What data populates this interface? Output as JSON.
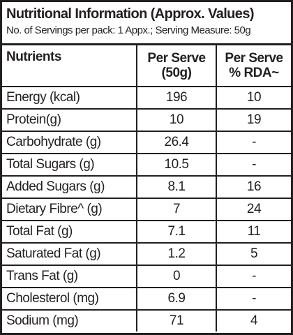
{
  "header": {
    "title": "Nutritional Information (Approx. Values)",
    "subtitle": "No. of Servings per pack: 1 Appx.; Serving Measure: 50g"
  },
  "table": {
    "columns": [
      [
        "Nutrients"
      ],
      [
        "Per Serve",
        "(50g)"
      ],
      [
        "Per Serve",
        "% RDA~"
      ]
    ],
    "rows": [
      [
        "Energy (kcal)",
        "196",
        "10"
      ],
      [
        "Protein(g)",
        "10",
        "19"
      ],
      [
        "Carbohydrate (g)",
        "26.4",
        "-"
      ],
      [
        "Total Sugars (g)",
        "10.5",
        "-"
      ],
      [
        "Added Sugars (g)",
        "8.1",
        "16"
      ],
      [
        "Dietary Fibre^ (g)",
        "7",
        "24"
      ],
      [
        "Total Fat (g)",
        "7.1",
        "11"
      ],
      [
        "Saturated Fat (g)",
        "1.2",
        "5"
      ],
      [
        "Trans Fat (g)",
        "0",
        "-"
      ],
      [
        "Cholesterol (mg)",
        "6.9",
        "-"
      ],
      [
        "Sodium (mg)",
        "71",
        "4"
      ]
    ]
  }
}
